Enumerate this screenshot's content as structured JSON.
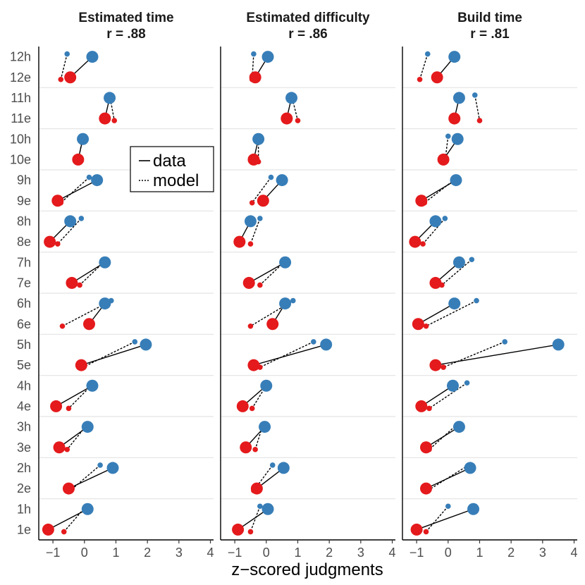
{
  "chart_data": {
    "type": "scatter",
    "xlabel": "z−scored judgments",
    "xlim": [
      -1.45,
      4.1
    ],
    "xticks": [
      -1,
      0,
      1,
      2,
      3,
      4
    ],
    "xtick_labels": [
      "−1",
      "0",
      "1",
      "2",
      "3",
      "4"
    ],
    "ylabels": [
      "12h",
      "12e",
      "11h",
      "11e",
      "10h",
      "10e",
      "9h",
      "9e",
      "8h",
      "8e",
      "7h",
      "7e",
      "6h",
      "6e",
      "5h",
      "5e",
      "4h",
      "4e",
      "3h",
      "3e",
      "2h",
      "2e",
      "1h",
      "1e"
    ],
    "colors": {
      "h": "#377eb8",
      "e": "#e41a1c"
    },
    "legend": {
      "position": "left",
      "entries": [
        "data",
        "model"
      ]
    },
    "panels": [
      {
        "title": "Estimated time",
        "subtitle": "r = .88",
        "series": [
          {
            "item": 12,
            "h": 0.25,
            "e": -0.45,
            "h_model": -0.55,
            "e_model": -0.75
          },
          {
            "item": 11,
            "h": 0.8,
            "e": 0.65,
            "h_model": 0.8,
            "e_model": 0.95
          },
          {
            "item": 10,
            "h": -0.05,
            "e": -0.2,
            "h_model": -0.05,
            "e_model": -0.2
          },
          {
            "item": 9,
            "h": 0.4,
            "e": -0.85,
            "h_model": 0.15,
            "e_model": -0.75
          },
          {
            "item": 8,
            "h": -0.45,
            "e": -1.1,
            "h_model": -0.1,
            "e_model": -0.85
          },
          {
            "item": 7,
            "h": 0.65,
            "e": -0.4,
            "h_model": 0.7,
            "e_model": -0.15
          },
          {
            "item": 6,
            "h": 0.65,
            "e": 0.15,
            "h_model": 0.85,
            "e_model": -0.7
          },
          {
            "item": 5,
            "h": 1.95,
            "e": -0.1,
            "h_model": 1.6,
            "e_model": -0.05
          },
          {
            "item": 4,
            "h": 0.25,
            "e": -0.9,
            "h_model": 0.3,
            "e_model": -0.5
          },
          {
            "item": 3,
            "h": 0.1,
            "e": -0.8,
            "h_model": 0.1,
            "e_model": -0.55
          },
          {
            "item": 2,
            "h": 0.9,
            "e": -0.5,
            "h_model": 0.5,
            "e_model": -0.45
          },
          {
            "item": 1,
            "h": 0.1,
            "e": -1.15,
            "h_model": 0.05,
            "e_model": -0.65
          }
        ]
      },
      {
        "title": "Estimated difficulty",
        "subtitle": "r = .86",
        "series": [
          {
            "item": 12,
            "h": 0.05,
            "e": -0.35,
            "h_model": -0.4,
            "e_model": -0.45
          },
          {
            "item": 11,
            "h": 0.8,
            "e": 0.65,
            "h_model": 0.8,
            "e_model": 1.0
          },
          {
            "item": 10,
            "h": -0.25,
            "e": -0.4,
            "h_model": -0.25,
            "e_model": -0.25
          },
          {
            "item": 9,
            "h": 0.5,
            "e": -0.1,
            "h_model": 0.15,
            "e_model": -0.45
          },
          {
            "item": 8,
            "h": -0.5,
            "e": -0.85,
            "h_model": -0.2,
            "e_model": -0.5
          },
          {
            "item": 7,
            "h": 0.6,
            "e": -0.55,
            "h_model": 0.65,
            "e_model": -0.2
          },
          {
            "item": 6,
            "h": 0.6,
            "e": 0.2,
            "h_model": 0.85,
            "e_model": -0.5
          },
          {
            "item": 5,
            "h": 1.9,
            "e": -0.4,
            "h_model": 1.5,
            "e_model": -0.2
          },
          {
            "item": 4,
            "h": 0.0,
            "e": -0.75,
            "h_model": 0.05,
            "e_model": -0.45
          },
          {
            "item": 3,
            "h": -0.05,
            "e": -0.65,
            "h_model": -0.1,
            "e_model": -0.35
          },
          {
            "item": 2,
            "h": 0.55,
            "e": -0.3,
            "h_model": 0.2,
            "e_model": -0.4
          },
          {
            "item": 1,
            "h": 0.05,
            "e": -0.9,
            "h_model": -0.2,
            "e_model": -0.5
          }
        ]
      },
      {
        "title": "Build time",
        "subtitle": "r = .81",
        "series": [
          {
            "item": 12,
            "h": 0.2,
            "e": -0.35,
            "h_model": -0.65,
            "e_model": -0.9
          },
          {
            "item": 11,
            "h": 0.35,
            "e": 0.2,
            "h_model": 0.85,
            "e_model": 1.0
          },
          {
            "item": 10,
            "h": 0.3,
            "e": -0.15,
            "h_model": 0.0,
            "e_model": -0.1
          },
          {
            "item": 9,
            "h": 0.25,
            "e": -0.85,
            "h_model": 0.3,
            "e_model": -0.75
          },
          {
            "item": 8,
            "h": -0.4,
            "e": -1.05,
            "h_model": -0.1,
            "e_model": -0.8
          },
          {
            "item": 7,
            "h": 0.35,
            "e": -0.4,
            "h_model": 0.75,
            "e_model": -0.2
          },
          {
            "item": 6,
            "h": 0.2,
            "e": -0.95,
            "h_model": 0.9,
            "e_model": -0.7
          },
          {
            "item": 5,
            "h": 3.5,
            "e": -0.4,
            "h_model": 1.8,
            "e_model": -0.15
          },
          {
            "item": 4,
            "h": 0.15,
            "e": -0.85,
            "h_model": 0.6,
            "e_model": -0.6
          },
          {
            "item": 3,
            "h": 0.35,
            "e": -0.7,
            "h_model": 0.3,
            "e_model": -0.6
          },
          {
            "item": 2,
            "h": 0.7,
            "e": -0.7,
            "h_model": 0.65,
            "e_model": -0.65
          },
          {
            "item": 1,
            "h": 0.8,
            "e": -1.0,
            "h_model": 0.0,
            "e_model": -0.7
          }
        ]
      }
    ]
  }
}
